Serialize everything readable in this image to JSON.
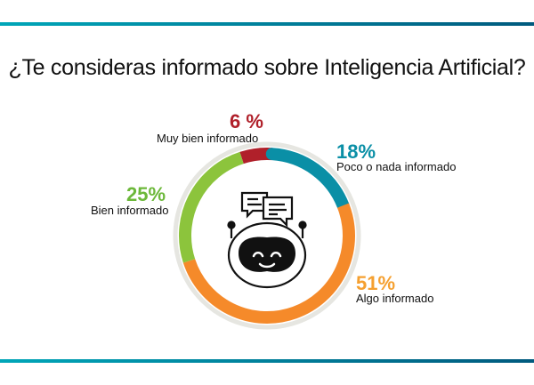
{
  "title": "¿Te consideras informado sobre Inteligencia Artificial?",
  "chart_data": {
    "type": "pie",
    "title": "¿Te consideras informado sobre Inteligencia Artificial?",
    "donut": true,
    "categories": [
      "Muy bien informado",
      "Poco o nada informado",
      "Algo informado",
      "Bien informado"
    ],
    "values": [
      6,
      18,
      51,
      25
    ],
    "labels": [
      "6 %",
      "18%",
      "51%",
      "25%"
    ],
    "colors": [
      "#b0202a",
      "#0a8fa6",
      "#f58a2a",
      "#8cc43c"
    ],
    "center_icon": "robot-chat-icon"
  },
  "colors": {
    "accent_bar": "#00a6b8",
    "ring_bg": "#e6e6e1"
  }
}
